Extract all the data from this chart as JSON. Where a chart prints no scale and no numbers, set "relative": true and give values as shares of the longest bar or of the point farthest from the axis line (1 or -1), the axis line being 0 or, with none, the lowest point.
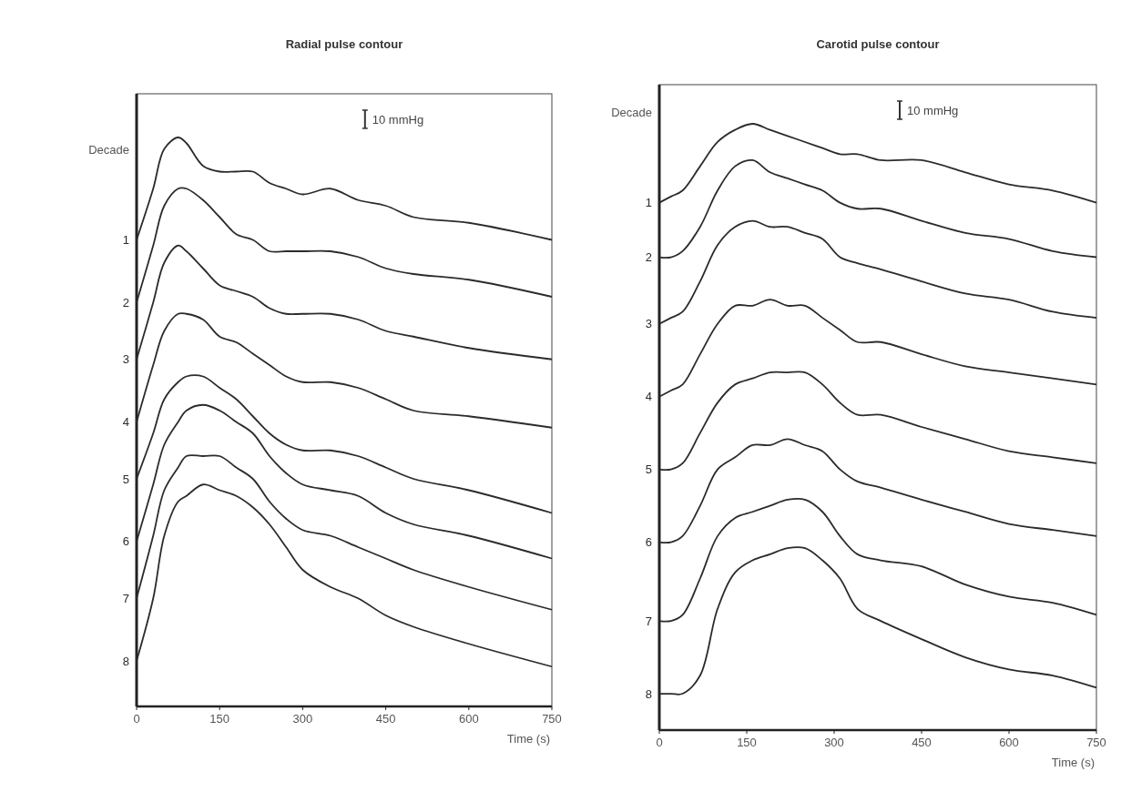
{
  "chart_data": [
    {
      "type": "line",
      "relative": true,
      "title": "Radial pulse contour",
      "xlabel": "Time (s)",
      "ylabel": "Decade",
      "xlim": [
        0,
        750
      ],
      "xticks": [
        0,
        150,
        300,
        450,
        600,
        750
      ],
      "grid": false,
      "marker": "none",
      "line_style": "solid",
      "annotations": [
        "10 mmHg"
      ],
      "x": [
        0,
        30,
        50,
        75,
        90,
        120,
        150,
        180,
        210,
        240,
        270,
        300,
        350,
        400,
        450,
        500,
        600,
        750
      ],
      "series": [
        {
          "name": "1",
          "color": "#2b2b2b",
          "values": [
            0.82,
            0.91,
            0.98,
            1.0,
            0.99,
            0.95,
            0.94,
            0.94,
            0.94,
            0.92,
            0.91,
            0.9,
            0.91,
            0.89,
            0.88,
            0.86,
            0.85,
            0.82
          ]
        },
        {
          "name": "2",
          "color": "#2b2b2b",
          "values": [
            0.71,
            0.81,
            0.88,
            0.91,
            0.91,
            0.89,
            0.86,
            0.83,
            0.82,
            0.8,
            0.8,
            0.8,
            0.8,
            0.79,
            0.77,
            0.76,
            0.75,
            0.72
          ]
        },
        {
          "name": "3",
          "color": "#2b2b2b",
          "values": [
            0.61,
            0.71,
            0.78,
            0.81,
            0.8,
            0.77,
            0.74,
            0.73,
            0.72,
            0.7,
            0.69,
            0.69,
            0.69,
            0.68,
            0.66,
            0.65,
            0.63,
            0.61
          ]
        },
        {
          "name": "4",
          "color": "#2b2b2b",
          "values": [
            0.5,
            0.6,
            0.66,
            0.69,
            0.69,
            0.68,
            0.65,
            0.64,
            0.62,
            0.6,
            0.58,
            0.57,
            0.57,
            0.56,
            0.54,
            0.52,
            0.51,
            0.49
          ]
        },
        {
          "name": "5",
          "color": "#2b2b2b",
          "values": [
            0.4,
            0.48,
            0.54,
            0.57,
            0.58,
            0.58,
            0.56,
            0.54,
            0.51,
            0.48,
            0.46,
            0.45,
            0.45,
            0.44,
            0.42,
            0.4,
            0.38,
            0.34
          ]
        },
        {
          "name": "6",
          "color": "#2b2b2b",
          "values": [
            0.29,
            0.39,
            0.46,
            0.5,
            0.52,
            0.53,
            0.52,
            0.5,
            0.48,
            0.44,
            0.41,
            0.39,
            0.38,
            0.37,
            0.34,
            0.32,
            0.3,
            0.26
          ]
        },
        {
          "name": "7",
          "color": "#2b2b2b",
          "values": [
            0.19,
            0.3,
            0.38,
            0.42,
            0.44,
            0.44,
            0.44,
            0.42,
            0.4,
            0.36,
            0.33,
            0.31,
            0.3,
            0.28,
            0.26,
            0.24,
            0.21,
            0.17
          ]
        },
        {
          "name": "8",
          "color": "#2b2b2b",
          "values": [
            0.08,
            0.19,
            0.3,
            0.36,
            0.37,
            0.39,
            0.38,
            0.37,
            0.35,
            0.32,
            0.28,
            0.24,
            0.21,
            0.19,
            0.16,
            0.14,
            0.11,
            0.07
          ]
        }
      ]
    },
    {
      "type": "line",
      "relative": true,
      "title": "Carotid pulse contour",
      "xlabel": "Time (s)",
      "ylabel": "Decade",
      "xlim": [
        0,
        750
      ],
      "xticks": [
        0,
        150,
        300,
        450,
        600,
        750
      ],
      "grid": false,
      "marker": "none",
      "line_style": "solid",
      "annotations": [
        "10 mmHg"
      ],
      "x": [
        0,
        20,
        40,
        70,
        100,
        130,
        160,
        190,
        220,
        250,
        280,
        310,
        340,
        380,
        450,
        525,
        600,
        675,
        750
      ],
      "series": [
        {
          "name": "1",
          "color": "#2b2b2b",
          "values": [
            0.87,
            0.88,
            0.89,
            0.93,
            0.97,
            0.99,
            1.0,
            0.99,
            0.98,
            0.97,
            0.96,
            0.95,
            0.95,
            0.94,
            0.94,
            0.92,
            0.9,
            0.89,
            0.87
          ]
        },
        {
          "name": "2",
          "color": "#2b2b2b",
          "values": [
            0.78,
            0.78,
            0.79,
            0.83,
            0.89,
            0.93,
            0.94,
            0.92,
            0.91,
            0.9,
            0.89,
            0.87,
            0.86,
            0.86,
            0.84,
            0.82,
            0.81,
            0.79,
            0.78
          ]
        },
        {
          "name": "3",
          "color": "#2b2b2b",
          "values": [
            0.67,
            0.68,
            0.69,
            0.74,
            0.8,
            0.83,
            0.84,
            0.83,
            0.83,
            0.82,
            0.81,
            0.78,
            0.77,
            0.76,
            0.74,
            0.72,
            0.71,
            0.69,
            0.68
          ]
        },
        {
          "name": "4",
          "color": "#2b2b2b",
          "values": [
            0.55,
            0.56,
            0.57,
            0.62,
            0.67,
            0.7,
            0.7,
            0.71,
            0.7,
            0.7,
            0.68,
            0.66,
            0.64,
            0.64,
            0.62,
            0.6,
            0.59,
            0.58,
            0.57
          ]
        },
        {
          "name": "5",
          "color": "#2b2b2b",
          "values": [
            0.43,
            0.43,
            0.44,
            0.49,
            0.54,
            0.57,
            0.58,
            0.59,
            0.59,
            0.59,
            0.57,
            0.54,
            0.52,
            0.52,
            0.5,
            0.48,
            0.46,
            0.45,
            0.44
          ]
        },
        {
          "name": "6",
          "color": "#2b2b2b",
          "values": [
            0.31,
            0.31,
            0.32,
            0.37,
            0.43,
            0.45,
            0.47,
            0.47,
            0.48,
            0.47,
            0.46,
            0.43,
            0.41,
            0.4,
            0.38,
            0.36,
            0.34,
            0.33,
            0.32
          ]
        },
        {
          "name": "7",
          "color": "#2b2b2b",
          "values": [
            0.18,
            0.18,
            0.19,
            0.25,
            0.32,
            0.35,
            0.36,
            0.37,
            0.38,
            0.38,
            0.36,
            0.32,
            0.29,
            0.28,
            0.27,
            0.24,
            0.22,
            0.21,
            0.19
          ]
        },
        {
          "name": "8",
          "color": "#2b2b2b",
          "values": [
            0.06,
            0.06,
            0.06,
            0.09,
            0.2,
            0.26,
            0.28,
            0.29,
            0.3,
            0.3,
            0.28,
            0.25,
            0.2,
            0.18,
            0.15,
            0.12,
            0.1,
            0.09,
            0.07
          ]
        }
      ]
    }
  ]
}
